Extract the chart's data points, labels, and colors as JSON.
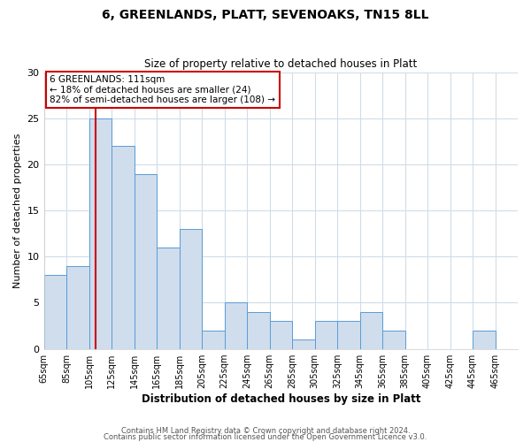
{
  "title": "6, GREENLANDS, PLATT, SEVENOAKS, TN15 8LL",
  "subtitle": "Size of property relative to detached houses in Platt",
  "xlabel": "Distribution of detached houses by size in Platt",
  "ylabel": "Number of detached properties",
  "bin_edges": [
    65,
    85,
    105,
    125,
    145,
    165,
    185,
    205,
    225,
    245,
    265,
    285,
    305,
    325,
    345,
    365,
    385,
    405,
    425,
    445,
    465,
    485
  ],
  "counts": [
    8,
    9,
    25,
    22,
    19,
    11,
    13,
    2,
    5,
    4,
    3,
    1,
    3,
    3,
    4,
    2,
    0,
    0,
    0,
    2,
    0
  ],
  "bar_color": "#cfdded",
  "bar_edge_color": "#5b9bd5",
  "property_size": 111,
  "red_line_color": "#cc0000",
  "annotation_text": "6 GREENLANDS: 111sqm\n← 18% of detached houses are smaller (24)\n82% of semi-detached houses are larger (108) →",
  "annotation_box_color": "#ffffff",
  "annotation_box_edge": "#cc0000",
  "ylim": [
    0,
    30
  ],
  "yticks": [
    0,
    5,
    10,
    15,
    20,
    25,
    30
  ],
  "footer1": "Contains HM Land Registry data © Crown copyright and database right 2024.",
  "footer2": "Contains public sector information licensed under the Open Government Licence v3.0.",
  "tick_labels": [
    "65sqm",
    "85sqm",
    "105sqm",
    "125sqm",
    "145sqm",
    "165sqm",
    "185sqm",
    "205sqm",
    "225sqm",
    "245sqm",
    "265sqm",
    "285sqm",
    "305sqm",
    "325sqm",
    "345sqm",
    "365sqm",
    "385sqm",
    "405sqm",
    "425sqm",
    "445sqm",
    "465sqm"
  ],
  "grid_color": "#d0dce8"
}
